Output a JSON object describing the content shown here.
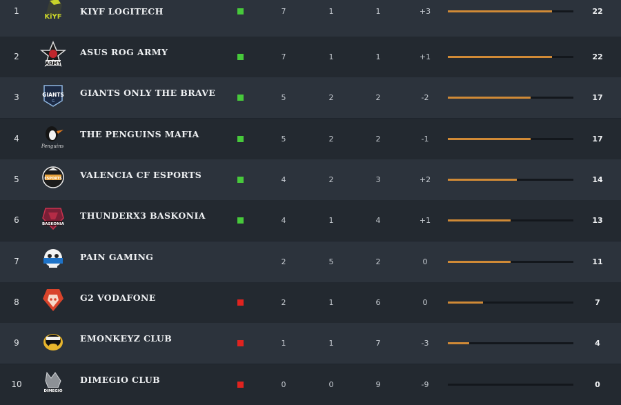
{
  "colors": {
    "bar_fill": "#d08a36",
    "status_green": "#47c93b",
    "status_red": "#e0231f"
  },
  "max_points": 22,
  "teams": [
    {
      "rank": "1",
      "name": "KIYF LOGITECH",
      "status": "green",
      "w": "7",
      "d": "1",
      "l": "1",
      "diff": "+3",
      "points": "22",
      "bar": 0.83,
      "icon": "kiyf-logo-icon"
    },
    {
      "rank": "2",
      "name": "ASUS ROG ARMY",
      "status": "green",
      "w": "7",
      "d": "1",
      "l": "1",
      "diff": "+1",
      "points": "22",
      "bar": 0.83,
      "icon": "rog-army-logo-icon"
    },
    {
      "rank": "3",
      "name": "GIANTS ONLY THE BRAVE",
      "status": "green",
      "w": "5",
      "d": "2",
      "l": "2",
      "diff": "-2",
      "points": "17",
      "bar": 0.66,
      "icon": "giants-logo-icon"
    },
    {
      "rank": "4",
      "name": "THE PENGUINS MAFIA",
      "status": "green",
      "w": "5",
      "d": "2",
      "l": "2",
      "diff": "-1",
      "points": "17",
      "bar": 0.66,
      "icon": "penguins-logo-icon"
    },
    {
      "rank": "5",
      "name": "VALENCIA CF ESPORTS",
      "status": "green",
      "w": "4",
      "d": "2",
      "l": "3",
      "diff": "+2",
      "points": "14",
      "bar": 0.55,
      "icon": "valencia-logo-icon"
    },
    {
      "rank": "6",
      "name": "THUNDERX3 BASKONIA",
      "status": "green",
      "w": "4",
      "d": "1",
      "l": "4",
      "diff": "+1",
      "points": "13",
      "bar": 0.5,
      "icon": "baskonia-logo-icon"
    },
    {
      "rank": "7",
      "name": "PAIN GAMING",
      "status": "none",
      "w": "2",
      "d": "5",
      "l": "2",
      "diff": "0",
      "points": "11",
      "bar": 0.5,
      "icon": "pain-gaming-logo-icon"
    },
    {
      "rank": "8",
      "name": "G2 VODAFONE",
      "status": "red",
      "w": "2",
      "d": "1",
      "l": "6",
      "diff": "0",
      "points": "7",
      "bar": 0.28,
      "icon": "g2-logo-icon"
    },
    {
      "rank": "9",
      "name": "EMONKEYZ CLUB",
      "status": "red",
      "w": "1",
      "d": "1",
      "l": "7",
      "diff": "-3",
      "points": "4",
      "bar": 0.17,
      "icon": "emonkeyz-logo-icon"
    },
    {
      "rank": "10",
      "name": "DIMEGIO CLUB",
      "status": "red",
      "w": "0",
      "d": "0",
      "l": "9",
      "diff": "-9",
      "points": "0",
      "bar": 0.0,
      "icon": "dimegio-logo-icon"
    }
  ]
}
